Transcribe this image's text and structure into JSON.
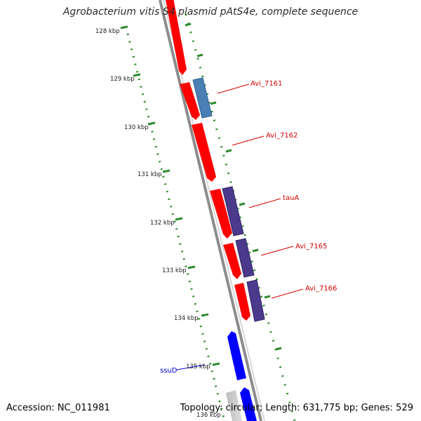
{
  "header": {
    "title": "Agrobacterium vitis S4 plasmid pAtS4e, complete sequence"
  },
  "footer": {
    "accession": "Accession: NC_011981",
    "topology": "Topology: circular; Length: 631,775 bp; Genes: 529"
  },
  "colors": {
    "forward_cds": "#ff0000",
    "reverse_cds": "#0000ff",
    "cog_blue": "#4a7fb5",
    "cog_purple": "#4b3a8c",
    "ruler_green": "#2e8b2e",
    "backbone_gray": "#8c8c8c",
    "label_red": "#d40000",
    "label_blue": "#0000cc"
  },
  "ruler": {
    "ticks": [
      "128 kbp",
      "129 kbp",
      "130 kbp",
      "131 kbp",
      "132 kbp",
      "133 kbp",
      "134 kbp",
      "135 kbp",
      "136 kbp"
    ]
  },
  "genes": [
    {
      "name": "Avi_7161",
      "label_color": "red"
    },
    {
      "name": "Avi_7162",
      "label_color": "red"
    },
    {
      "name": "tauA",
      "label_color": "red"
    },
    {
      "name": "Avi_7165",
      "label_color": "red"
    },
    {
      "name": "Avi_7166",
      "label_color": "red"
    },
    {
      "name": "ssuD",
      "label_color": "blue"
    }
  ]
}
